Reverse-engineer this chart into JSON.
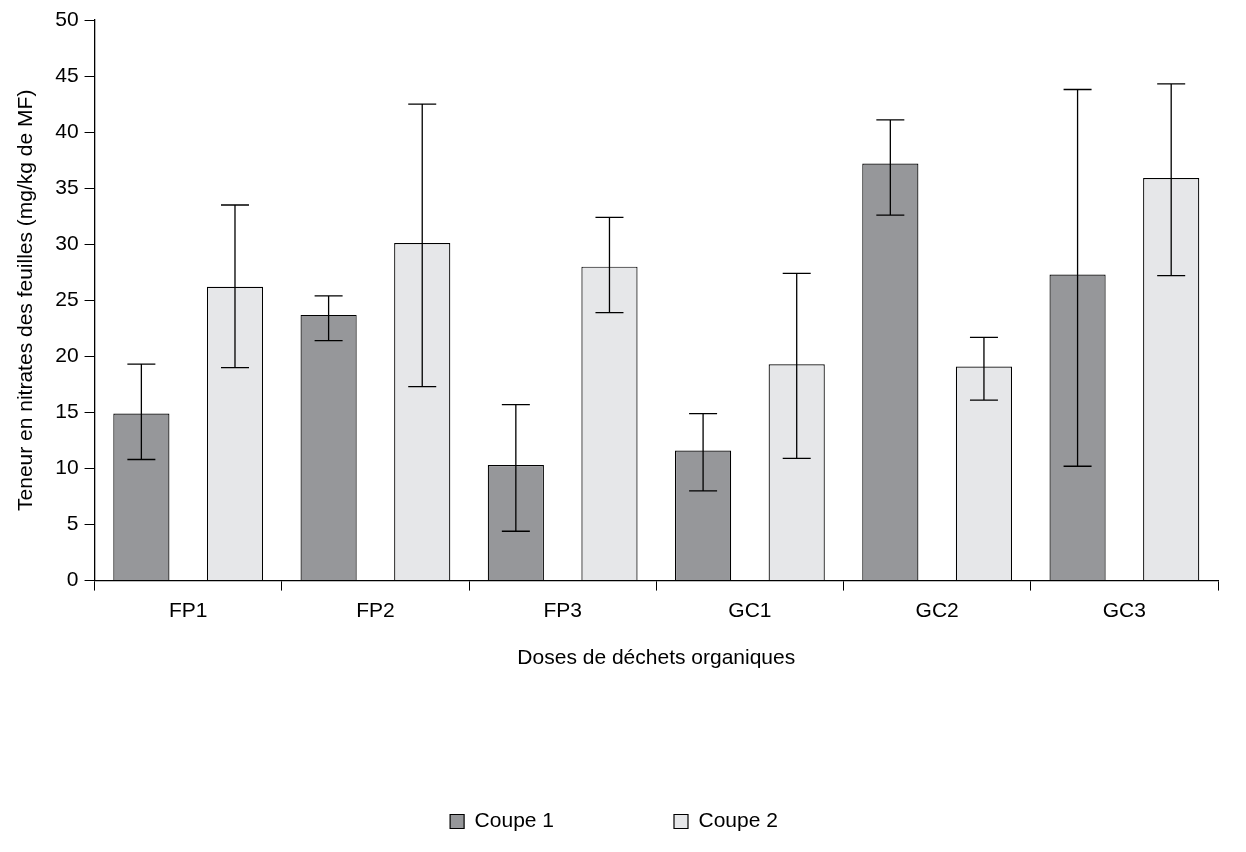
{
  "chart_data": {
    "type": "bar",
    "xlabel": "Doses de déchets organiques",
    "ylabel": "Teneur en nitrates des feuilles (mg/kg de MF)",
    "categories": [
      "FP1",
      "FP2",
      "FP3",
      "GC1",
      "GC2",
      "GC3"
    ],
    "series": [
      {
        "name": "Coupe 1",
        "color": "#96979a",
        "values": [
          14.9,
          23.7,
          10.3,
          11.6,
          37.2,
          27.3
        ],
        "errors": [
          [
            10.8,
            19.3
          ],
          [
            21.4,
            25.4
          ],
          [
            4.4,
            15.7
          ],
          [
            8.0,
            14.9
          ],
          [
            32.6,
            41.1
          ],
          [
            10.2,
            43.8
          ]
        ]
      },
      {
        "name": "Coupe 2",
        "color": "#e6e7e9",
        "values": [
          26.2,
          30.1,
          28.0,
          19.3,
          19.1,
          35.9
        ],
        "errors": [
          [
            19.0,
            33.5
          ],
          [
            17.3,
            42.5
          ],
          [
            23.9,
            32.4
          ],
          [
            10.9,
            27.4
          ],
          [
            16.1,
            21.7
          ],
          [
            27.2,
            44.3
          ]
        ]
      }
    ],
    "ylim": [
      0,
      50
    ],
    "yticks": [
      0,
      5,
      10,
      15,
      20,
      25,
      30,
      35,
      40,
      45,
      50
    ],
    "legend": "bottom"
  }
}
